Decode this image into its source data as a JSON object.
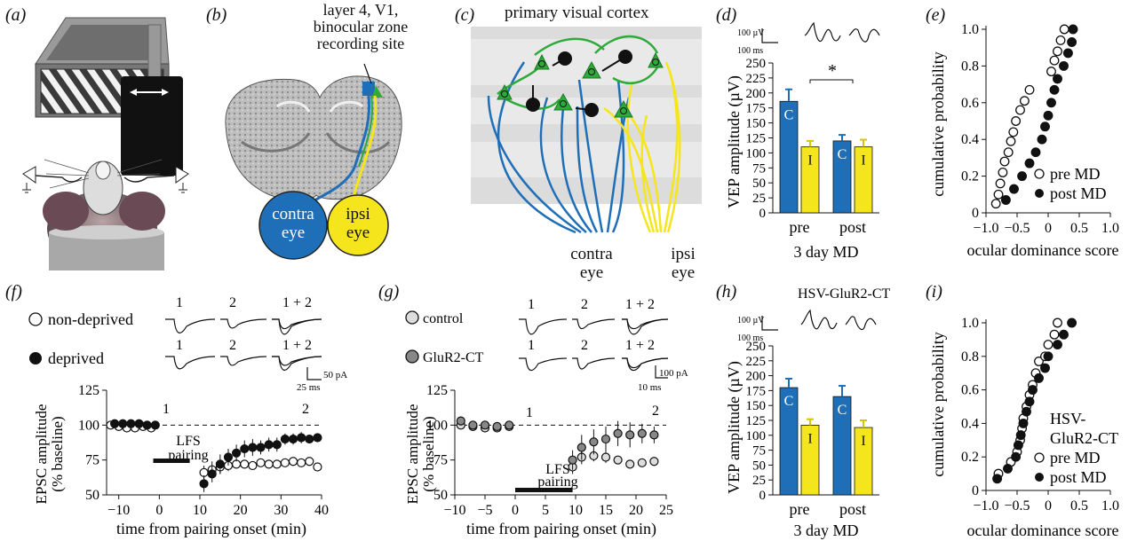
{
  "panel_labels": {
    "a": "(a)",
    "b": "(b)",
    "c": "(c)",
    "d": "(d)",
    "e": "(e)",
    "f": "(f)",
    "g": "(g)",
    "h": "(h)",
    "i": "(i)"
  },
  "panel_b": {
    "site_label_1": "layer 4, V1,",
    "site_label_2": "binocular zone",
    "site_label_3": "recording site",
    "contra_1": "contra",
    "contra_2": "eye",
    "ipsi_1": "ipsi",
    "ipsi_2": "eye"
  },
  "panel_c": {
    "title": "primary visual cortex",
    "contra_1": "contra",
    "contra_2": "eye",
    "ipsi_1": "ipsi",
    "ipsi_2": "eye"
  },
  "panel_d": {
    "scale_uv": "100 µV",
    "scale_ms": "100 ms",
    "ylabel": "VEP amplitude (µV)",
    "xlabel": "3 day MD",
    "sig": "*",
    "colors": {
      "contra": "#1f6fb8",
      "ipsi": "#f5e51d"
    }
  },
  "panel_e": {
    "ylabel": "cumulative probability",
    "xlabel": "ocular dominance score",
    "legend_pre": "pre MD",
    "legend_post": "post MD"
  },
  "panel_f": {
    "legend_1": "non-deprived",
    "legend_2": "deprived",
    "trace_labels": [
      "1",
      "2",
      "1 + 2",
      "1",
      "2",
      "1 + 2"
    ],
    "scale_pa": "50 pA",
    "scale_ms": "25 ms",
    "ylabel_1": "EPSC amplitude",
    "ylabel_2": "(% baseline)",
    "xlabel": "time from pairing onset (min)",
    "bar_1": "LFS",
    "bar_2": "pairing",
    "point_1": "1",
    "point_2": "2"
  },
  "panel_g": {
    "legend_1": "control",
    "legend_2": "GluR2-CT",
    "trace_labels": [
      "1",
      "2",
      "1 + 2",
      "1",
      "2",
      "1 + 2"
    ],
    "scale_pa": "100 pA",
    "scale_ms": "10 ms",
    "ylabel_1": "EPSC amplitude",
    "ylabel_2": "(% baseline)",
    "xlabel": "time from pairing onset (min)",
    "bar_1": "LFS",
    "bar_2": "pairing",
    "point_1": "1",
    "point_2": "2"
  },
  "panel_h": {
    "title": "HSV-GluR2-CT",
    "scale_uv": "100 µV",
    "scale_ms": "100 ms",
    "ylabel": "VEP amplitude (µV)",
    "xlabel": "3 day MD"
  },
  "panel_i": {
    "ylabel": "cumulative probability",
    "xlabel": "ocular dominance score",
    "legend_title_1": "HSV-",
    "legend_title_2": "GluR2-CT",
    "legend_pre": "pre MD",
    "legend_post": "post MD"
  },
  "chart_data": [
    {
      "id": "d",
      "type": "bar",
      "categories": [
        "pre",
        "post"
      ],
      "series": [
        {
          "name": "C",
          "values": [
            186,
            120
          ],
          "err": [
            20,
            10
          ]
        },
        {
          "name": "I",
          "values": [
            110,
            110
          ],
          "err": [
            10,
            12
          ]
        }
      ],
      "yticks": [
        0,
        25,
        50,
        75,
        100,
        125,
        150,
        175,
        200,
        225,
        250
      ],
      "ylim": [
        0,
        250
      ],
      "ylabel": "VEP amplitude (µV)",
      "xlabel": "3 day MD"
    },
    {
      "id": "e",
      "type": "scatter",
      "series": [
        {
          "name": "pre MD",
          "filled": false,
          "x": [
            -0.84,
            -0.8,
            -0.77,
            -0.73,
            -0.7,
            -0.64,
            -0.6,
            -0.56,
            -0.52,
            -0.45,
            -0.38,
            -0.3,
            0.05,
            0.1,
            0.15,
            0.2,
            0.26
          ],
          "y": [
            0.05,
            0.1,
            0.16,
            0.22,
            0.28,
            0.33,
            0.39,
            0.44,
            0.5,
            0.56,
            0.61,
            0.67,
            0.77,
            0.83,
            0.88,
            0.94,
            1.0
          ]
        },
        {
          "name": "post MD",
          "filled": true,
          "x": [
            -0.68,
            -0.55,
            -0.42,
            -0.3,
            -0.2,
            -0.1,
            -0.05,
            0.0,
            0.05,
            0.1,
            0.15,
            0.25,
            0.32,
            0.38,
            0.4
          ],
          "y": [
            0.07,
            0.13,
            0.2,
            0.27,
            0.33,
            0.4,
            0.47,
            0.53,
            0.6,
            0.67,
            0.73,
            0.8,
            0.87,
            0.93,
            1.0
          ]
        }
      ],
      "xticks": [
        -1.0,
        -0.5,
        0,
        0.5,
        1.0
      ],
      "xtick_labels": [
        "−1.0",
        "−0.5",
        "0",
        "0.5",
        "1.0"
      ],
      "yticks": [
        0,
        0.2,
        0.4,
        0.6,
        0.8,
        1.0
      ],
      "ytick_labels": [
        "0",
        "0.2",
        "0.4",
        "0.6",
        "0.8",
        "1.0"
      ],
      "xlim": [
        -1,
        1
      ],
      "ylim": [
        0,
        1
      ]
    },
    {
      "id": "f",
      "type": "line",
      "xticks": [
        -10,
        0,
        10,
        20,
        30,
        40
      ],
      "yticks": [
        50,
        75,
        100,
        125
      ],
      "xlim": [
        -13,
        40
      ],
      "ylim": [
        50,
        125
      ],
      "baseline": 100,
      "series": [
        {
          "name": "non-deprived",
          "filled": false,
          "x": [
            -12,
            -10,
            -8,
            -6,
            -4,
            -2,
            11,
            13,
            15,
            17,
            19,
            21,
            23,
            25,
            27,
            29,
            31,
            33,
            35,
            37,
            39
          ],
          "y": [
            100,
            99,
            98,
            98,
            99,
            98,
            66,
            68,
            70,
            71,
            72,
            72,
            71,
            73,
            72,
            72,
            73,
            74,
            73,
            74,
            70
          ],
          "err": [
            2,
            3,
            2,
            2,
            3,
            3,
            5,
            6,
            5,
            4,
            3,
            3,
            3,
            3,
            3,
            3,
            3,
            3,
            3,
            3,
            3
          ]
        },
        {
          "name": "deprived",
          "filled": true,
          "x": [
            -11,
            -9,
            -7,
            -5,
            -3,
            -1,
            11,
            13,
            15,
            17,
            19,
            21,
            23,
            25,
            27,
            29,
            31,
            33,
            35,
            37,
            39
          ],
          "y": [
            101,
            101,
            101,
            101,
            100,
            100,
            58,
            65,
            72,
            77,
            80,
            83,
            84,
            84,
            86,
            86,
            90,
            90,
            91,
            90,
            91
          ],
          "err": [
            2,
            2,
            2,
            2,
            3,
            3,
            6,
            6,
            7,
            6,
            6,
            6,
            6,
            5,
            5,
            5,
            4,
            4,
            4,
            3,
            3
          ]
        }
      ]
    },
    {
      "id": "g",
      "type": "line",
      "xticks": [
        -10,
        -5,
        0,
        5,
        10,
        15,
        20,
        25
      ],
      "yticks": [
        50,
        75,
        100,
        125
      ],
      "xlim": [
        -10,
        25
      ],
      "ylim": [
        50,
        125
      ],
      "baseline": 100,
      "series": [
        {
          "name": "control",
          "filled": false,
          "x": [
            -9,
            -7,
            -5,
            -3,
            -1,
            9.5,
            11,
            13,
            15,
            17,
            19,
            21,
            23
          ],
          "y": [
            100,
            99,
            98,
            98,
            99,
            70,
            77,
            78,
            77,
            75,
            72,
            73,
            74
          ],
          "err": [
            2,
            2,
            2,
            2,
            2,
            5,
            5,
            4,
            4,
            3,
            3,
            3,
            3
          ]
        },
        {
          "name": "GluR2-CT",
          "filled": true,
          "x": [
            -9,
            -7,
            -5,
            -3,
            -1,
            9.5,
            11,
            13,
            15,
            17,
            19,
            21,
            23
          ],
          "y": [
            103,
            100,
            100,
            99,
            100,
            75,
            84,
            88,
            90,
            94,
            93,
            94,
            93
          ],
          "err": [
            2,
            2,
            2,
            2,
            2,
            7,
            9,
            9,
            9,
            9,
            9,
            7,
            6
          ]
        }
      ]
    },
    {
      "id": "h",
      "type": "bar",
      "categories": [
        "pre",
        "post"
      ],
      "series": [
        {
          "name": "C",
          "values": [
            180,
            165
          ],
          "err": [
            15,
            18
          ]
        },
        {
          "name": "I",
          "values": [
            117,
            113
          ],
          "err": [
            10,
            12
          ]
        }
      ],
      "yticks": [
        0,
        25,
        50,
        75,
        100,
        125,
        150,
        175,
        200,
        225,
        250
      ],
      "ylim": [
        0,
        250
      ],
      "ylabel": "VEP amplitude (µV)",
      "xlabel": "3 day MD"
    },
    {
      "id": "i",
      "type": "scatter",
      "series": [
        {
          "name": "pre MD",
          "filled": false,
          "x": [
            -0.8,
            -0.6,
            -0.5,
            -0.45,
            -0.42,
            -0.4,
            -0.35,
            -0.3,
            -0.25,
            -0.2,
            -0.15,
            -0.05,
            0.0,
            0.1,
            0.15
          ],
          "y": [
            0.1,
            0.17,
            0.23,
            0.3,
            0.37,
            0.43,
            0.5,
            0.57,
            0.63,
            0.7,
            0.77,
            0.8,
            0.87,
            0.93,
            1.0
          ]
        },
        {
          "name": "post MD",
          "filled": true,
          "x": [
            -0.82,
            -0.65,
            -0.52,
            -0.48,
            -0.44,
            -0.4,
            -0.35,
            -0.3,
            -0.25,
            -0.15,
            -0.05,
            0.0,
            0.15,
            0.25,
            0.38
          ],
          "y": [
            0.07,
            0.13,
            0.2,
            0.27,
            0.33,
            0.4,
            0.47,
            0.53,
            0.6,
            0.67,
            0.73,
            0.8,
            0.87,
            0.93,
            1.0
          ]
        }
      ],
      "xticks": [
        -1.0,
        -0.5,
        0,
        0.5,
        1.0
      ],
      "xtick_labels": [
        "−1.0",
        "−0.5",
        "0",
        "0.5",
        "1.0"
      ],
      "yticks": [
        0,
        0.2,
        0.4,
        0.6,
        0.8,
        1.0
      ],
      "ytick_labels": [
        "0",
        "0.2",
        "0.4",
        "0.6",
        "0.8",
        "1.0"
      ],
      "xlim": [
        -1,
        1
      ],
      "ylim": [
        0,
        1
      ]
    }
  ]
}
